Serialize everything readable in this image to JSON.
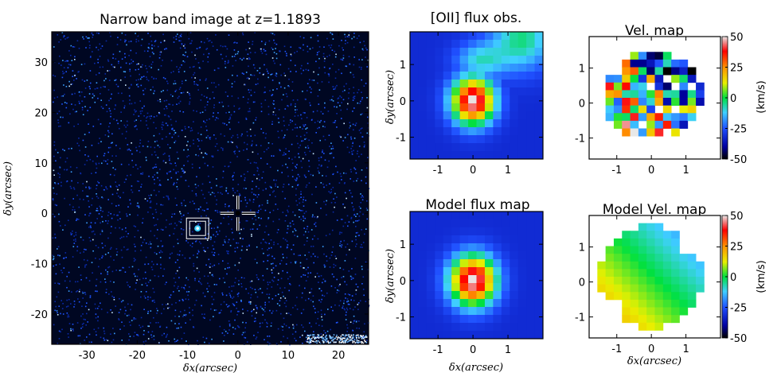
{
  "chart_data": [
    {
      "id": "narrow-band",
      "type": "heatmap",
      "title": "Narrow band image at z=1.1893",
      "xlabel": "δx(arcsec)",
      "ylabel": "δy(arcsec)",
      "xlim": [
        -37,
        26
      ],
      "ylim": [
        -26,
        36
      ],
      "xticks": [
        -30,
        -20,
        -10,
        0,
        10,
        20
      ],
      "yticks": [
        -20,
        -10,
        0,
        10,
        20,
        30
      ],
      "colormap": "black-blue noise field",
      "source_position": [
        -8,
        -3
      ],
      "crosshair_position": [
        0,
        0
      ]
    },
    {
      "id": "oii-flux",
      "type": "heatmap",
      "title": "[OII] flux obs.",
      "xlabel": "",
      "ylabel": "δy(arcsec)",
      "xlim": [
        -1.8,
        2.0
      ],
      "ylim": [
        -1.6,
        1.9
      ],
      "xticks": [
        -1,
        0,
        1
      ],
      "yticks": [
        -1,
        0,
        1
      ],
      "colormap": "jet"
    },
    {
      "id": "vel-map",
      "type": "heatmap",
      "title": "Vel. map",
      "xlabel": "",
      "ylabel": "",
      "xlim": [
        -1.8,
        2.0
      ],
      "ylim": [
        -1.6,
        1.9
      ],
      "xticks": [
        -1,
        0,
        1
      ],
      "yticks": [
        -1,
        0,
        1
      ],
      "colormap": "jet",
      "colorbar": {
        "label": "(km/s)",
        "range": [
          -50,
          50
        ],
        "ticks": [
          50,
          25,
          0,
          -25,
          -50
        ]
      }
    },
    {
      "id": "model-flux",
      "type": "heatmap",
      "title": "Model flux map",
      "xlabel": "δx(arcsec)",
      "ylabel": "δy(arcsec)",
      "xlim": [
        -1.8,
        2.0
      ],
      "ylim": [
        -1.6,
        1.9
      ],
      "xticks": [
        -1,
        0,
        1
      ],
      "yticks": [
        -1,
        0,
        1
      ],
      "colormap": "jet"
    },
    {
      "id": "model-vel",
      "type": "heatmap",
      "title": "Model Vel. map",
      "xlabel": "δx(arcsec)",
      "ylabel": "",
      "xlim": [
        -1.8,
        2.0
      ],
      "ylim": [
        -1.6,
        1.9
      ],
      "xticks": [
        -1,
        0,
        1
      ],
      "yticks": [
        -1,
        0,
        1
      ],
      "colormap": "jet",
      "colorbar": {
        "label": "(km/s)",
        "range": [
          -50,
          50
        ],
        "ticks": [
          50,
          25,
          0,
          -25,
          -50
        ]
      }
    }
  ]
}
